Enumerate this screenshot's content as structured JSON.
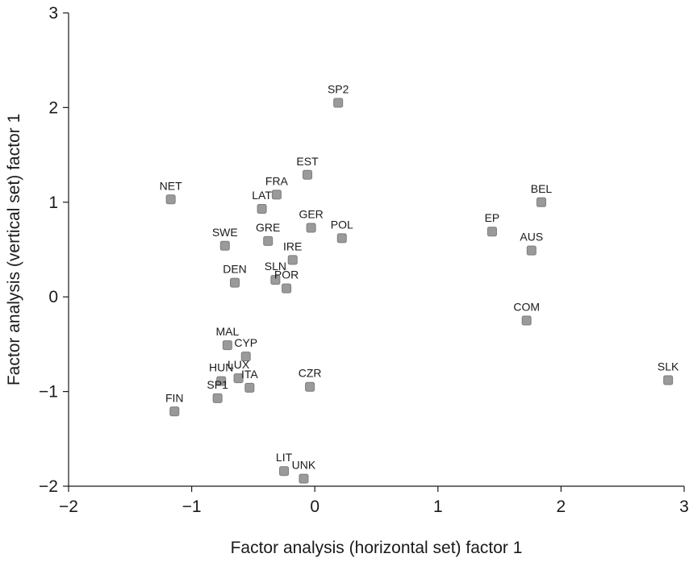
{
  "chart_data": {
    "type": "scatter",
    "title": "",
    "xlabel": "Factor analysis (horizontal set) factor 1",
    "ylabel": "Factor analysis (vertical set) factor 1",
    "xlim": [
      -2,
      3
    ],
    "ylim": [
      -2,
      3
    ],
    "xticks": [
      -2,
      -1,
      0,
      1,
      2,
      3
    ],
    "yticks": [
      -2,
      -1,
      0,
      1,
      2,
      3
    ],
    "xtick_labels": [
      "−2",
      "−1",
      "0",
      "1",
      "2",
      "3"
    ],
    "ytick_labels": [
      "−2",
      "−1",
      "0",
      "1",
      "2",
      "3"
    ],
    "grid": false,
    "marker_color": "#9a9a9a",
    "points": [
      {
        "label": "SP2",
        "x": 0.19,
        "y": 2.05
      },
      {
        "label": "EST",
        "x": -0.06,
        "y": 1.29
      },
      {
        "label": "FRA",
        "x": -0.31,
        "y": 1.08
      },
      {
        "label": "LAT",
        "x": -0.43,
        "y": 0.93
      },
      {
        "label": "NET",
        "x": -1.17,
        "y": 1.03
      },
      {
        "label": "BEL",
        "x": 1.84,
        "y": 1.0
      },
      {
        "label": "EP",
        "x": 1.44,
        "y": 0.69
      },
      {
        "label": "AUS",
        "x": 1.76,
        "y": 0.49
      },
      {
        "label": "GER",
        "x": -0.03,
        "y": 0.73
      },
      {
        "label": "POL",
        "x": 0.22,
        "y": 0.62
      },
      {
        "label": "SWE",
        "x": -0.73,
        "y": 0.54
      },
      {
        "label": "GRE",
        "x": -0.38,
        "y": 0.59
      },
      {
        "label": "IRE",
        "x": -0.18,
        "y": 0.39
      },
      {
        "label": "DEN",
        "x": -0.65,
        "y": 0.15
      },
      {
        "label": "SLN",
        "x": -0.32,
        "y": 0.18
      },
      {
        "label": "POR",
        "x": -0.23,
        "y": 0.09
      },
      {
        "label": "COM",
        "x": 1.72,
        "y": -0.25
      },
      {
        "label": "MAL",
        "x": -0.71,
        "y": -0.51
      },
      {
        "label": "CYP",
        "x": -0.56,
        "y": -0.63
      },
      {
        "label": "HUN",
        "x": -0.76,
        "y": -0.89
      },
      {
        "label": "LUX",
        "x": -0.62,
        "y": -0.86
      },
      {
        "label": "ITA",
        "x": -0.53,
        "y": -0.96
      },
      {
        "label": "CZR",
        "x": -0.04,
        "y": -0.95
      },
      {
        "label": "FIN",
        "x": -1.14,
        "y": -1.21
      },
      {
        "label": "SP1",
        "x": -0.79,
        "y": -1.07
      },
      {
        "label": "SLK",
        "x": 2.87,
        "y": -0.88
      },
      {
        "label": "LIT",
        "x": -0.25,
        "y": -1.84
      },
      {
        "label": "UNK",
        "x": -0.09,
        "y": -1.92
      }
    ]
  }
}
